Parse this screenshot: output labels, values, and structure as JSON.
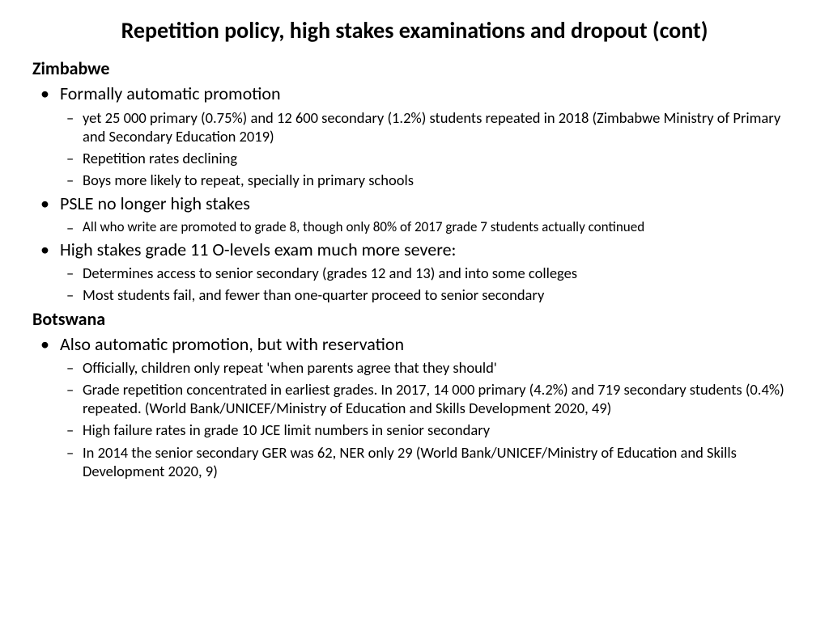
{
  "title": "Repetition policy, high stakes examinations and dropout (cont)",
  "sections": [
    {
      "heading": "Zimbabwe",
      "items": [
        {
          "text": "Formally automatic promotion",
          "sub": [
            "yet 25 000 primary (0.75%) and 12 600 secondary (1.2%) students repeated in 2018 (Zimbabwe Ministry of Primary and Secondary Education 2019)",
            "Repetition rates declining",
            "Boys more likely to repeat, specially in primary schools"
          ]
        },
        {
          "text": "PSLE no longer high stakes",
          "subSmall": true,
          "sub": [
            "All who write are promoted to grade 8, though only 80% of 2017 grade 7 students actually continued"
          ]
        },
        {
          "text": "High stakes grade 11 O-levels exam much more severe:",
          "sub": [
            "Determines access to senior secondary (grades 12 and 13) and into some colleges",
            "Most students fail, and fewer than one-quarter proceed to senior secondary"
          ]
        }
      ]
    },
    {
      "heading": "Botswana",
      "items": [
        {
          "text": "Also automatic promotion, but with reservation",
          "sub": [
            "Officially, children only repeat 'when parents agree that they should'",
            "Grade repetition concentrated in earliest grades. In 2017, 14 000 primary (4.2%) and 719 secondary students (0.4%) repeated. (World Bank/UNICEF/Ministry of Education and Skills Development 2020, 49)",
            "High failure rates in grade 10 JCE limit numbers in senior secondary",
            "In 2014 the senior secondary GER was 62, NER only 29 (World Bank/UNICEF/Ministry of Education and Skills Development 2020, 9)"
          ]
        }
      ]
    }
  ]
}
